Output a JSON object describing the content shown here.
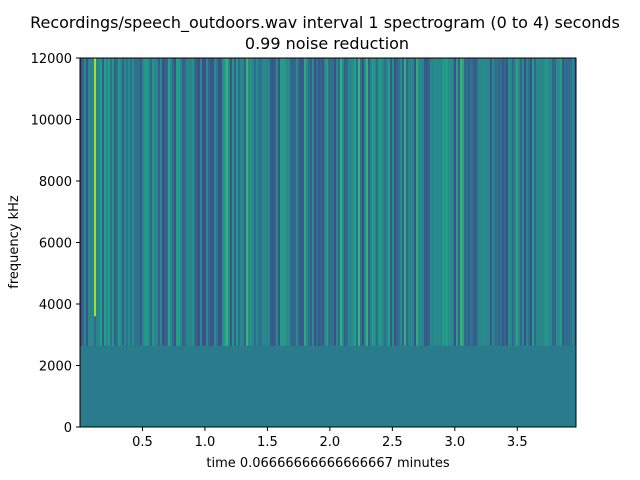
{
  "chart_data": {
    "type": "heatmap",
    "title": "Recordings/speech_outdoors.wav interval 1 spectrogram (0 to 4) seconds",
    "subtitle": "0.99 noise reduction",
    "xlabel": "time 0.06666666666666667 minutes",
    "ylabel": "frequency kHz",
    "xlim": [
      0,
      3.97
    ],
    "ylim": [
      0,
      12000
    ],
    "x_ticks": [
      0.5,
      1.0,
      1.5,
      2.0,
      2.5,
      3.0,
      3.5
    ],
    "x_tick_labels": [
      "0.5",
      "1.0",
      "1.5",
      "2.0",
      "2.5",
      "3.0",
      "3.5"
    ],
    "y_ticks": [
      0,
      2000,
      4000,
      6000,
      8000,
      10000,
      12000
    ],
    "y_tick_labels": [
      "0",
      "2000",
      "4000",
      "6000",
      "8000",
      "10000",
      "12000"
    ],
    "colormap": "viridis",
    "highlight_bands": [
      {
        "time": 0.12,
        "freq_from": 0,
        "freq_to": 12000,
        "level": "high"
      }
    ],
    "colors": {
      "dark": "#3b4f8a",
      "mid": "#2a8b8c",
      "light": "#5ec262",
      "bright": "#a8db34"
    }
  }
}
